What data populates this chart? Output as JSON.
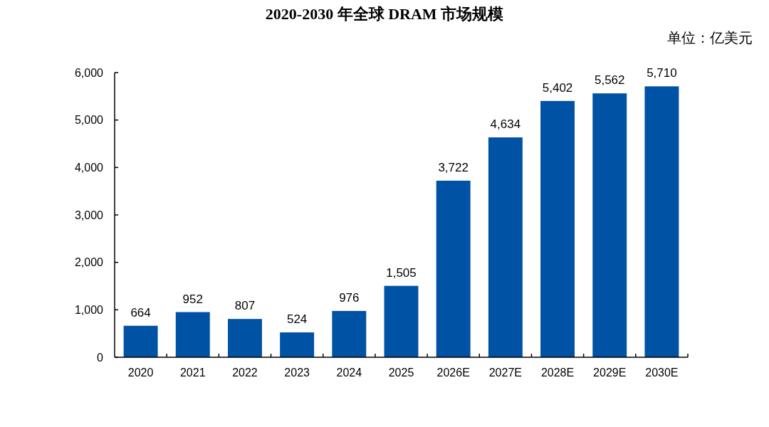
{
  "chart_data": {
    "type": "bar",
    "title": "2020-2030 年全球 DRAM 市场规模",
    "annotations": [
      "单位：亿美元"
    ],
    "categories": [
      "2020",
      "2021",
      "2022",
      "2023",
      "2024",
      "2025",
      "2026E",
      "2027E",
      "2028E",
      "2029E",
      "2030E"
    ],
    "values": [
      664,
      952,
      807,
      524,
      976,
      1505,
      3722,
      4634,
      5402,
      5562,
      5710
    ],
    "value_labels": [
      "664",
      "952",
      "807",
      "524",
      "976",
      "1,505",
      "3,722",
      "4,634",
      "5,402",
      "5,562",
      "5,710"
    ],
    "color": "#0052a5",
    "ylim": [
      0,
      6000
    ],
    "yticks": [
      0,
      {
        "value": 1000,
        "label": "1,000"
      },
      {
        "value": 2000,
        "label": "2,000"
      },
      {
        "value": 3000,
        "label": "3,000"
      },
      {
        "value": 4000,
        "label": "4,000"
      },
      {
        "value": 5000,
        "label": "5,000"
      },
      {
        "value": 6000,
        "label": "6,000"
      }
    ]
  }
}
